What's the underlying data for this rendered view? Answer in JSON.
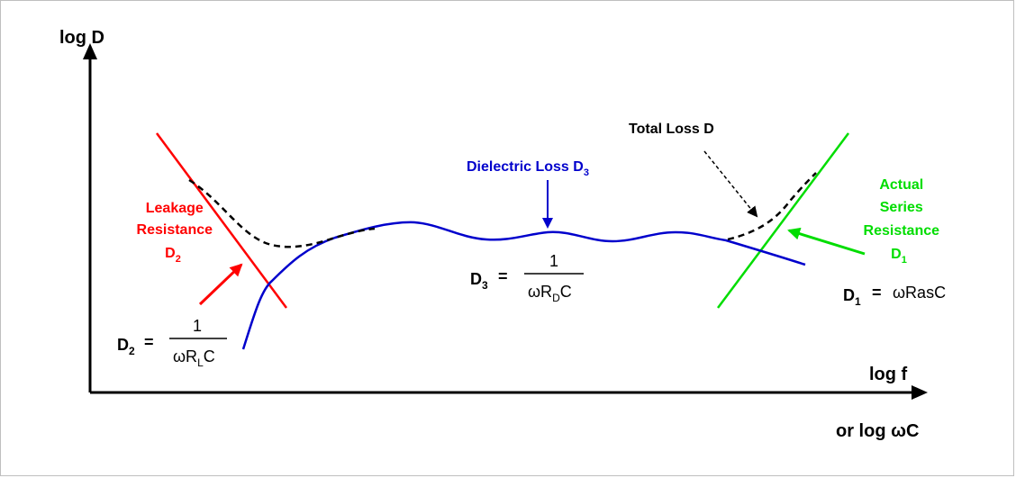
{
  "axes": {
    "y_label": "log D",
    "x_label": "log f",
    "x_label_alt": "or log ωC"
  },
  "colors": {
    "leakage": "#ff0000",
    "dielectric": "#0000cc",
    "series": "#00dd00",
    "total": "#000000",
    "axis": "#000000"
  },
  "labels": {
    "total_loss": "Total Loss D",
    "dielectric_loss": "Dielectric Loss D",
    "dielectric_loss_sub": "3",
    "leakage_line1": "Leakage",
    "leakage_line2": "Resistance",
    "leakage_line3": "D",
    "leakage_line3_sub": "2",
    "series_line1": "Actual",
    "series_line2": "Series",
    "series_line3": "Resistance",
    "series_line4": "D",
    "series_line4_sub": "1"
  },
  "formulas": {
    "d2": {
      "lhs": "D",
      "lhs_sub": "2",
      "eq": "=",
      "num": "1",
      "den_a": "ωR",
      "den_sub": "L",
      "den_b": "C"
    },
    "d3": {
      "lhs": "D",
      "lhs_sub": "3",
      "eq": "=",
      "num": "1",
      "den_a": "ωR",
      "den_sub": "D",
      "den_b": "C"
    },
    "d1": {
      "lhs": "D",
      "lhs_sub": "1",
      "eq": "=",
      "rhs": "ωRasC"
    }
  }
}
